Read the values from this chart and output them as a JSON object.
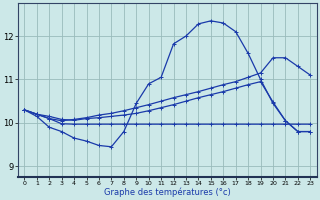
{
  "xlabel": "Graphe des températures (°c)",
  "background_color": "#cce8e8",
  "grid_color": "#99bbbb",
  "line_color": "#1a3aaa",
  "xlim": [
    -0.5,
    23.5
  ],
  "ylim": [
    8.75,
    12.75
  ],
  "xticks": [
    0,
    1,
    2,
    3,
    4,
    5,
    6,
    7,
    8,
    9,
    10,
    11,
    12,
    13,
    14,
    15,
    16,
    17,
    18,
    19,
    20,
    21,
    22,
    23
  ],
  "yticks": [
    9,
    10,
    11,
    12
  ],
  "line1_x": [
    0,
    1,
    2,
    3,
    4,
    5,
    6,
    7,
    8,
    9,
    10,
    11,
    12,
    13,
    14,
    15,
    16,
    17,
    18,
    19,
    20,
    21,
    22,
    23
  ],
  "line1_y": [
    10.3,
    10.15,
    9.9,
    9.8,
    9.65,
    9.58,
    9.48,
    9.45,
    9.8,
    10.45,
    10.9,
    11.05,
    11.82,
    12.0,
    12.28,
    12.35,
    12.3,
    12.1,
    11.6,
    11.0,
    10.45,
    10.05,
    9.8,
    9.8
  ],
  "line2_x": [
    0,
    1,
    2,
    3,
    4,
    5,
    6,
    7,
    8,
    9,
    10,
    11,
    12,
    13,
    14,
    15,
    16,
    17,
    18,
    19,
    20,
    21,
    22,
    23
  ],
  "line2_y": [
    10.3,
    10.2,
    10.15,
    10.08,
    10.06,
    10.1,
    10.12,
    10.15,
    10.18,
    10.22,
    10.28,
    10.35,
    10.42,
    10.5,
    10.58,
    10.65,
    10.72,
    10.8,
    10.88,
    10.95,
    10.48,
    10.05,
    9.8,
    9.8
  ],
  "line3_x": [
    0,
    1,
    2,
    3,
    4,
    5,
    6,
    7,
    8,
    9,
    10,
    11,
    12,
    13,
    14,
    15,
    16,
    17,
    18,
    19,
    20,
    21,
    22,
    23
  ],
  "line3_y": [
    10.3,
    10.2,
    10.1,
    9.98,
    9.97,
    9.97,
    9.97,
    9.97,
    9.97,
    9.97,
    9.97,
    9.97,
    9.97,
    9.97,
    9.97,
    9.97,
    9.97,
    9.97,
    9.97,
    9.97,
    9.97,
    9.97,
    9.97,
    9.97
  ],
  "line4_x": [
    0,
    1,
    2,
    3,
    4,
    5,
    6,
    7,
    8,
    9,
    10,
    11,
    12,
    13,
    14,
    15,
    16,
    17,
    18,
    19,
    20,
    21,
    22,
    23
  ],
  "line4_y": [
    10.3,
    10.2,
    10.1,
    10.05,
    10.08,
    10.12,
    10.18,
    10.22,
    10.28,
    10.35,
    10.42,
    10.5,
    10.58,
    10.65,
    10.72,
    10.8,
    10.88,
    10.95,
    11.05,
    11.15,
    11.5,
    11.5,
    11.3,
    11.1
  ]
}
